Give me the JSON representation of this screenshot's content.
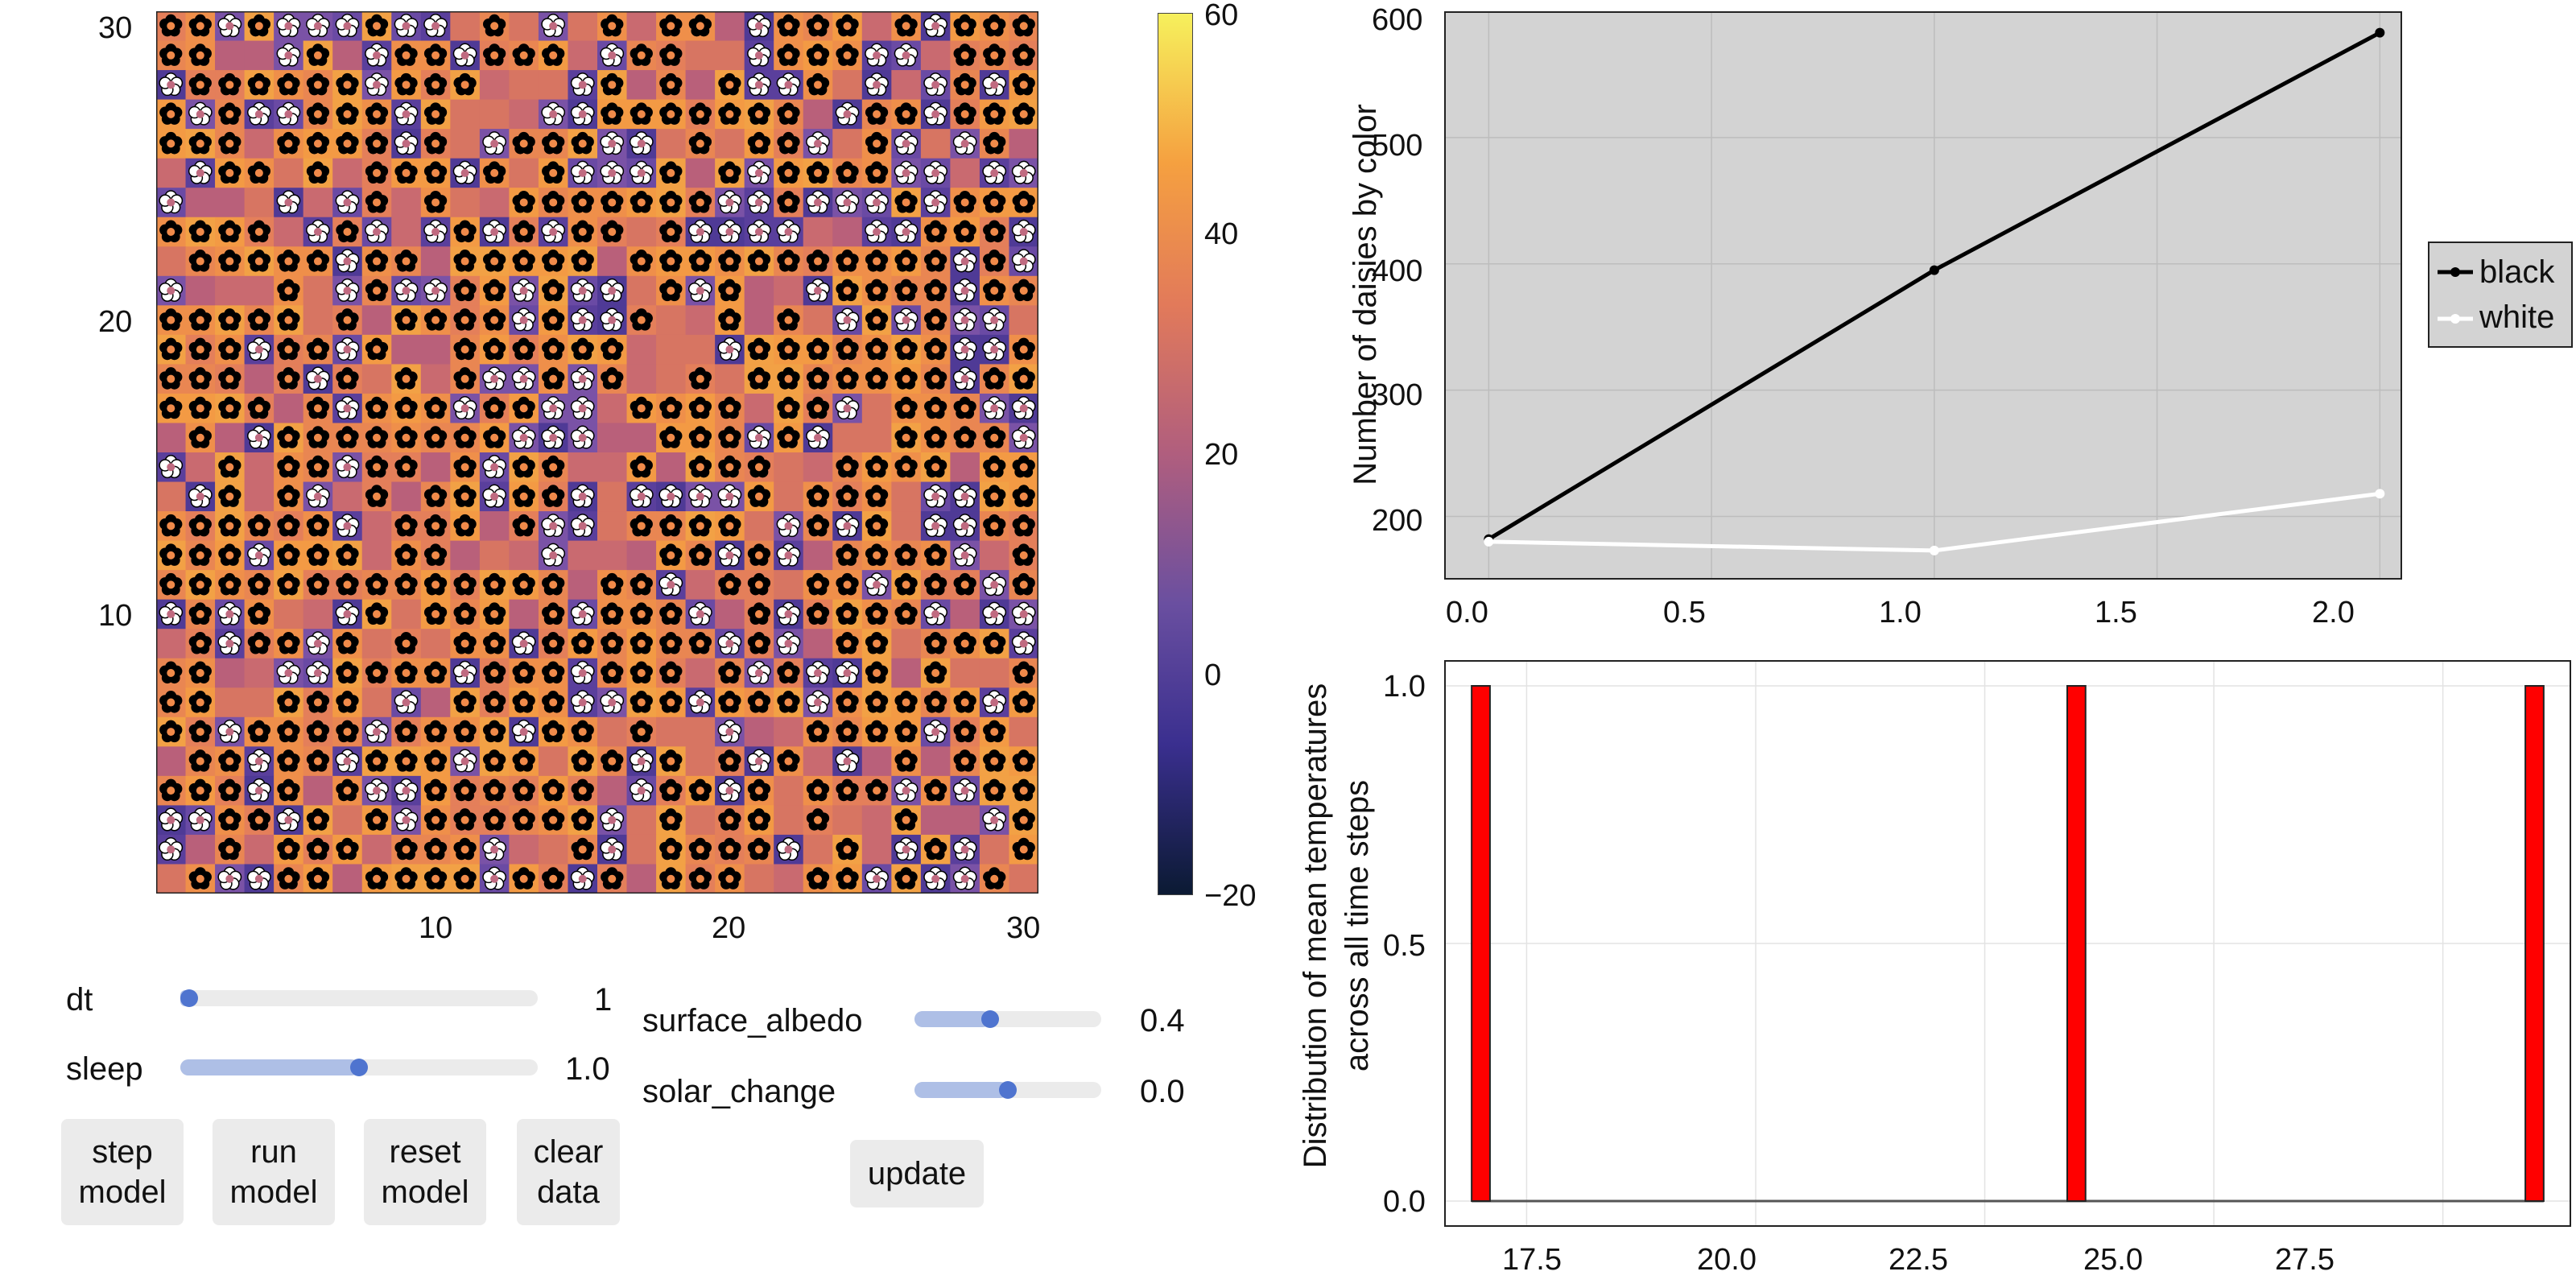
{
  "heatmap": {
    "x_ticks": [
      "10",
      "20",
      "30"
    ],
    "y_ticks": [
      "10",
      "20",
      "30"
    ],
    "colorbar_ticks": [
      "60",
      "40",
      "20",
      "0",
      "−20"
    ],
    "colorbar_range": [
      -20,
      60
    ],
    "colormap": [
      "#0b1a33",
      "#3a2f8f",
      "#6a4fa0",
      "#b05e7e",
      "#e27a5a",
      "#f5a040",
      "#f6f05c"
    ],
    "grid_size": 30
  },
  "controls": {
    "dt": {
      "label": "dt",
      "value": "1",
      "fraction": 0.02
    },
    "sleep": {
      "label": "sleep",
      "value": "1.0",
      "fraction": 0.5
    },
    "surface_albedo": {
      "label": "surface_albedo",
      "value": "0.4",
      "fraction": 0.4
    },
    "solar_change": {
      "label": "solar_change",
      "value": "0.0",
      "fraction": 0.5
    },
    "buttons": {
      "step": "step\nmodel",
      "run": "run\nmodel",
      "reset": "reset\nmodel",
      "clear": "clear\ndata",
      "update": "update"
    }
  },
  "chart_data": [
    {
      "type": "line",
      "ylabel": "Number of daisies by color",
      "xlim": [
        -0.1,
        2.05
      ],
      "ylim": [
        150,
        600
      ],
      "x_ticks": [
        "0.0",
        "0.5",
        "1.0",
        "1.5",
        "2.0"
      ],
      "y_ticks": [
        "600",
        "500",
        "400",
        "300",
        "200"
      ],
      "series": [
        {
          "name": "black",
          "x": [
            0,
            1,
            2
          ],
          "values": [
            182,
            395,
            583
          ],
          "color": "#000000"
        },
        {
          "name": "white",
          "x": [
            0,
            1,
            2
          ],
          "values": [
            180,
            173,
            218
          ],
          "color": "#ffffff"
        }
      ],
      "legend": "outside-right",
      "background": "#d3d3d3"
    },
    {
      "type": "bar",
      "ylabel_line1": "Distribution of mean temperatures",
      "ylabel_line2": "across all time steps",
      "xlim": [
        16.6,
        28.9
      ],
      "ylim": [
        -0.05,
        1.05
      ],
      "x_ticks": [
        "17.5",
        "20.0",
        "22.5",
        "25.0",
        "27.5"
      ],
      "y_ticks": [
        "1.0",
        "0.5",
        "0.0"
      ],
      "bins": [
        {
          "x0": 16.9,
          "x1": 17.1,
          "value": 1.0
        },
        {
          "x0": 23.4,
          "x1": 23.6,
          "value": 1.0
        },
        {
          "x0": 28.4,
          "x1": 28.6,
          "value": 1.0
        }
      ],
      "bar_color": "#ff0000"
    }
  ]
}
